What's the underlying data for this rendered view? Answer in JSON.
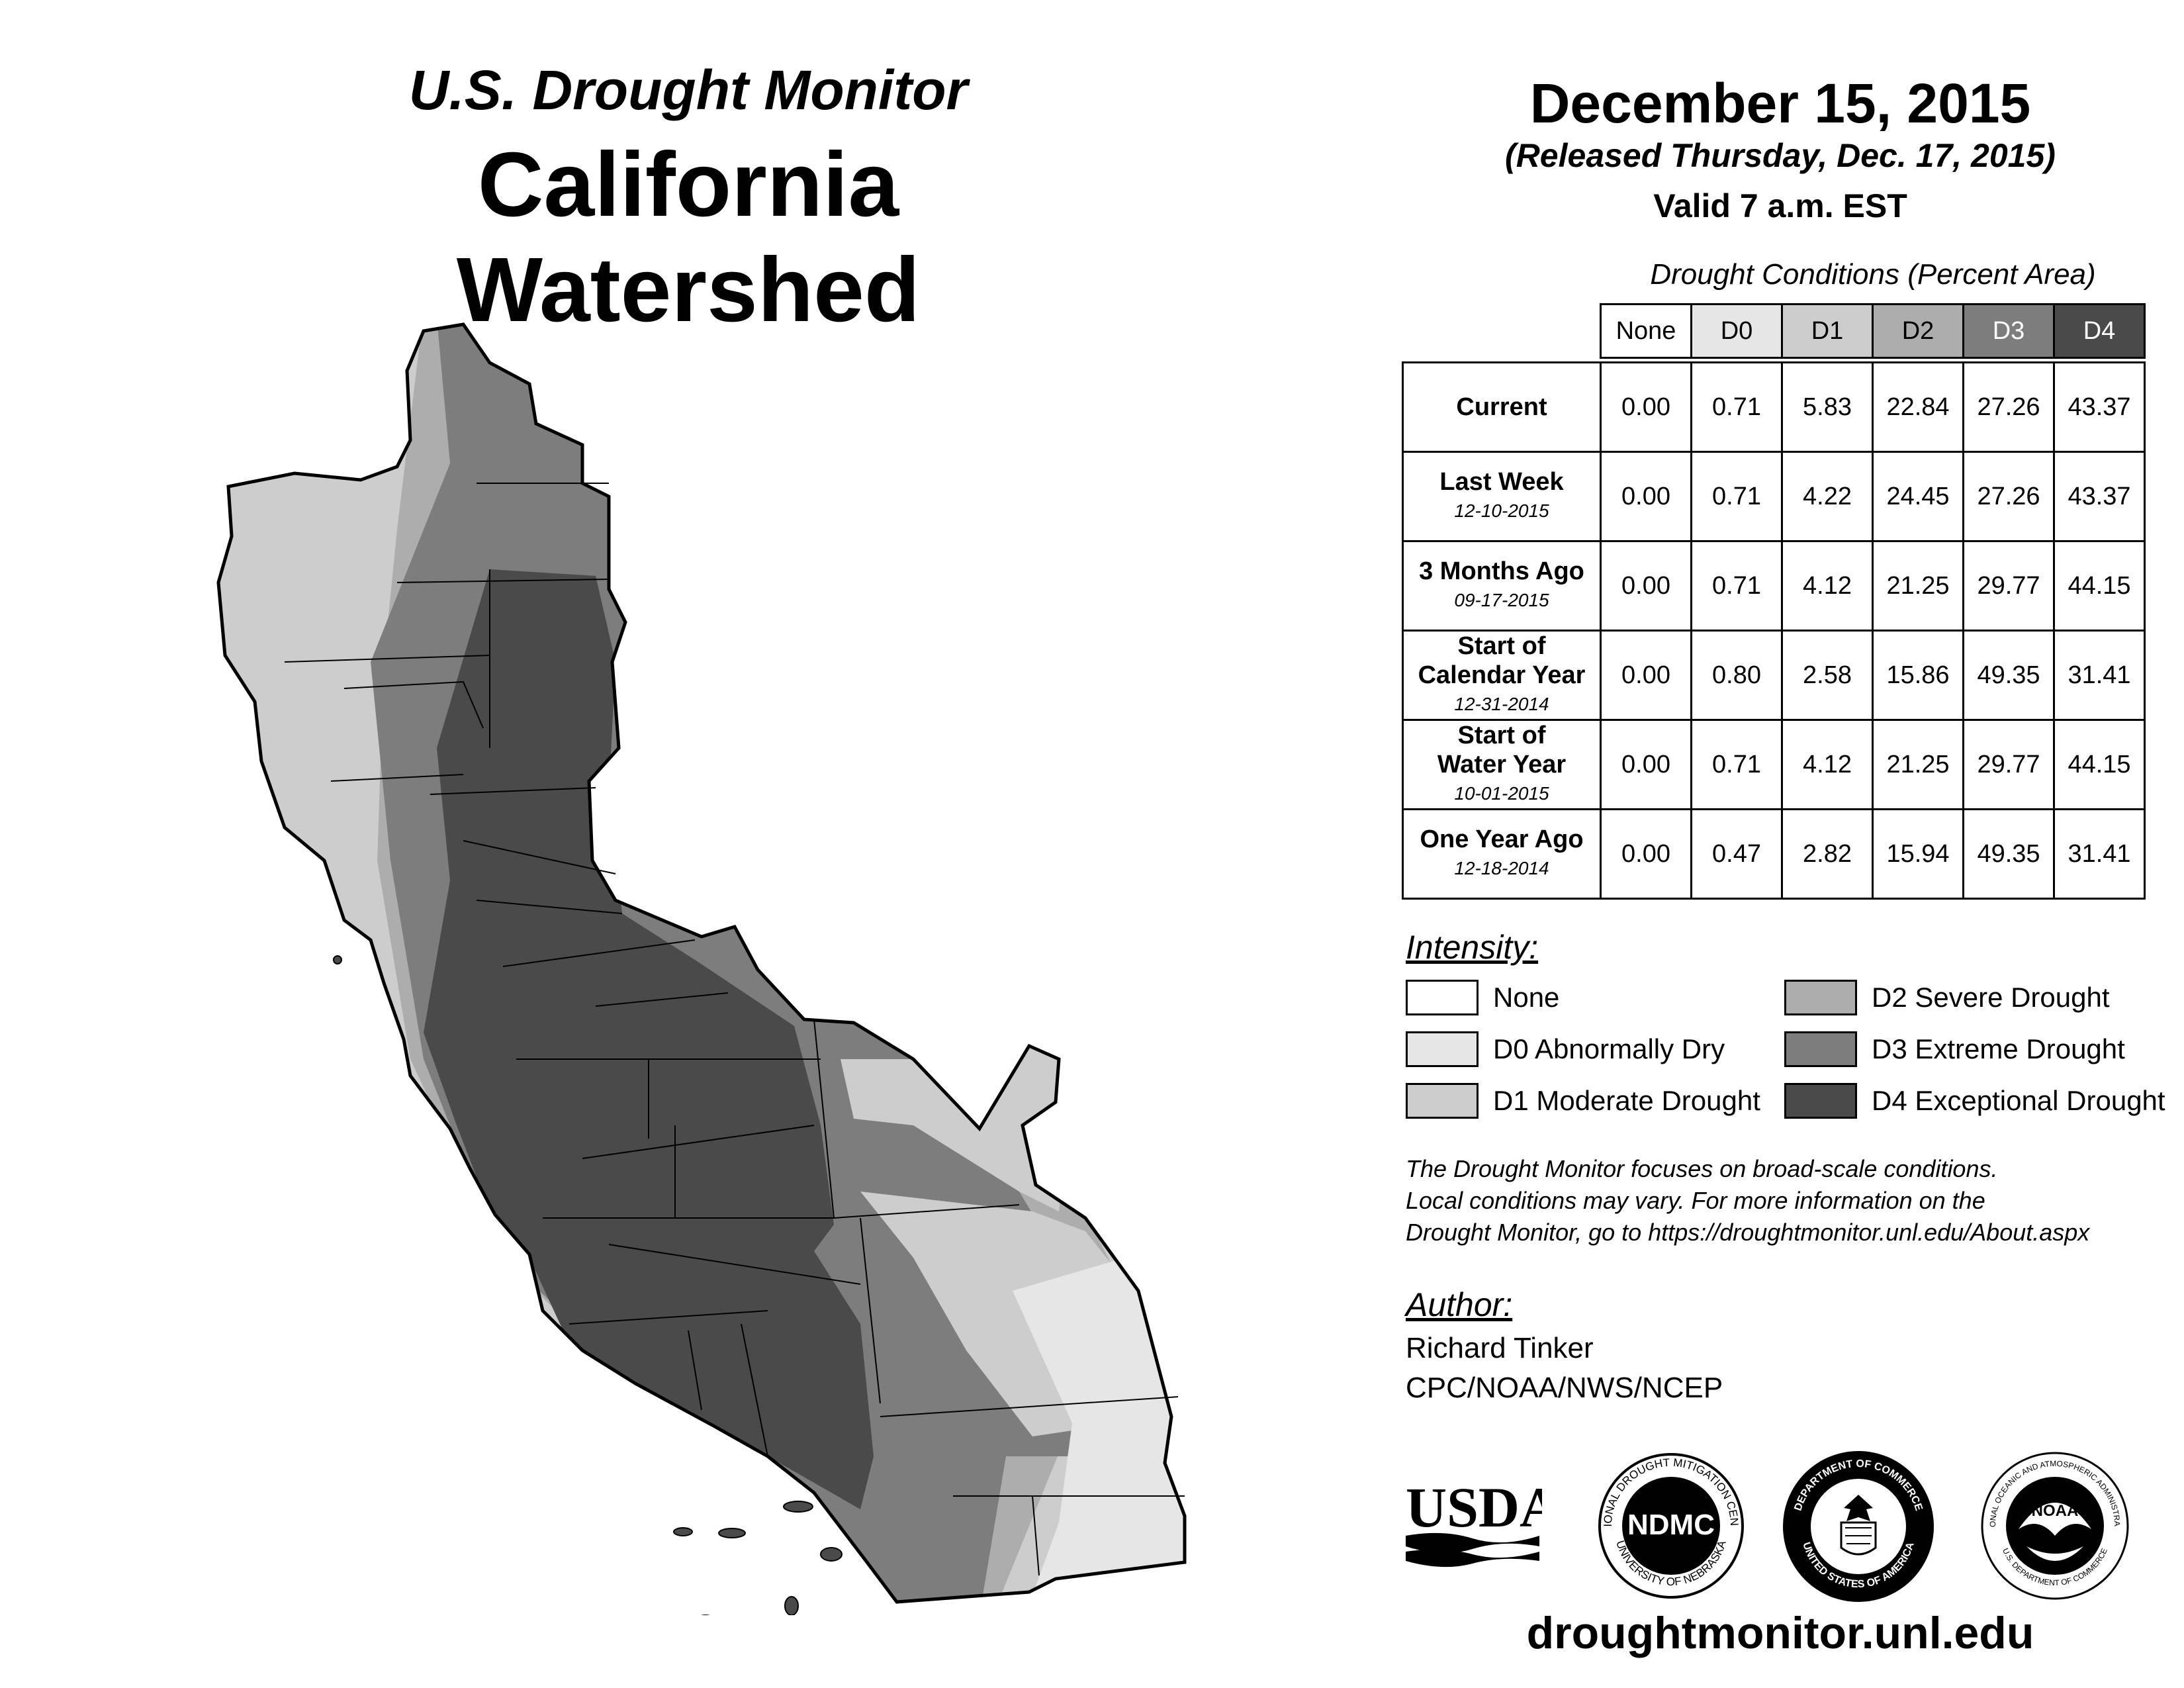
{
  "header": {
    "subtitle": "U.S. Drought Monitor",
    "title": "California Watershed"
  },
  "date": {
    "main": "December 15, 2015",
    "released": "(Released Thursday, Dec. 17, 2015)",
    "valid": "Valid 7 a.m. EST"
  },
  "table": {
    "caption": "Drought Conditions (Percent Area)",
    "columns": [
      "None",
      "D0",
      "D1",
      "D2",
      "D3",
      "D4"
    ],
    "rows": [
      {
        "label_lines": [
          "Current"
        ],
        "date": "",
        "values": [
          "0.00",
          "0.71",
          "5.83",
          "22.84",
          "27.26",
          "43.37"
        ]
      },
      {
        "label_lines": [
          "Last Week"
        ],
        "date": "12-10-2015",
        "values": [
          "0.00",
          "0.71",
          "4.22",
          "24.45",
          "27.26",
          "43.37"
        ]
      },
      {
        "label_lines": [
          "3 Months Ago"
        ],
        "date": "09-17-2015",
        "values": [
          "0.00",
          "0.71",
          "4.12",
          "21.25",
          "29.77",
          "44.15"
        ]
      },
      {
        "label_lines": [
          "Start of",
          "Calendar Year"
        ],
        "date": "12-31-2014",
        "values": [
          "0.00",
          "0.80",
          "2.58",
          "15.86",
          "49.35",
          "31.41"
        ]
      },
      {
        "label_lines": [
          "Start of",
          "Water Year"
        ],
        "date": "10-01-2015",
        "values": [
          "0.00",
          "0.71",
          "4.12",
          "21.25",
          "29.77",
          "44.15"
        ]
      },
      {
        "label_lines": [
          "One Year Ago"
        ],
        "date": "12-18-2014",
        "values": [
          "0.00",
          "0.47",
          "2.82",
          "15.94",
          "49.35",
          "31.41"
        ]
      }
    ]
  },
  "legend": {
    "title": "Intensity:",
    "items": [
      {
        "label": "None",
        "color": "#ffffff"
      },
      {
        "label": "D0 Abnormally Dry",
        "color": "#e6e6e6"
      },
      {
        "label": "D1 Moderate Drought",
        "color": "#cdcdcd"
      },
      {
        "label": "D2 Severe Drought",
        "color": "#adadad"
      },
      {
        "label": "D3 Extreme Drought",
        "color": "#7d7d7d"
      },
      {
        "label": "D4 Exceptional Drought",
        "color": "#4a4a4a"
      }
    ]
  },
  "note": {
    "lines": [
      "The Drought Monitor focuses on broad-scale conditions.",
      "Local conditions may vary. For more information on the",
      "Drought Monitor, go to https://droughtmonitor.unl.edu/About.aspx"
    ]
  },
  "author": {
    "title": "Author:",
    "name": "Richard Tinker",
    "org": "CPC/NOAA/NWS/NCEP"
  },
  "logos": {
    "usda": "USDA",
    "ndmc": "NDMC",
    "ndmc_ring_top": "NATIONAL DROUGHT MITIGATION CENTER",
    "ndmc_ring_bottom": "UNIVERSITY OF NEBRASKA",
    "doc_ring_top": "DEPARTMENT OF COMMERCE",
    "doc_ring_bottom": "UNITED STATES OF AMERICA",
    "noaa": "NOAA",
    "noaa_ring_top": "NATIONAL OCEANIC AND ATMOSPHERIC ADMINISTRATION",
    "noaa_ring_bottom": "U.S. DEPARTMENT OF COMMERCE"
  },
  "footer": {
    "url": "droughtmonitor.unl.edu"
  }
}
